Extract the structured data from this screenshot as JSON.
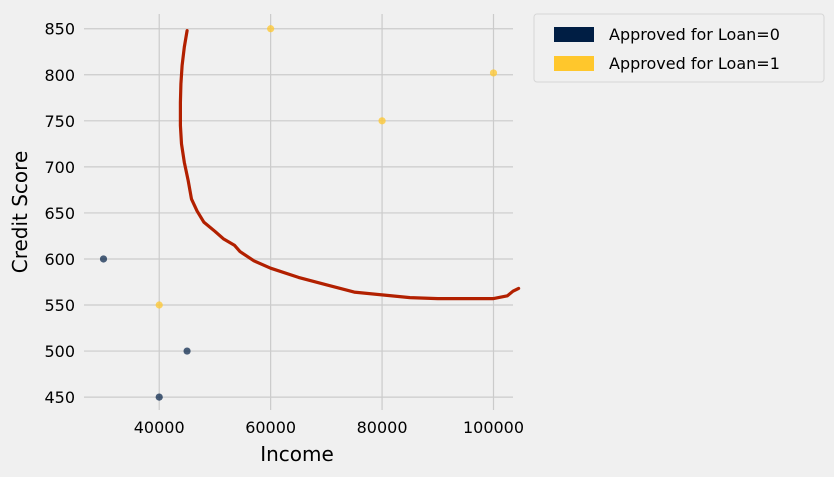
{
  "chart_data": {
    "type": "scatter",
    "xlabel": "Income",
    "ylabel": "Credit Score",
    "xlim": [
      26500,
      103500
    ],
    "ylim": [
      436,
      866
    ],
    "xticks": [
      40000,
      60000,
      80000,
      100000
    ],
    "xtick_labels": [
      "40000",
      "60000",
      "80000",
      "100000"
    ],
    "yticks": [
      450,
      500,
      550,
      600,
      650,
      700,
      750,
      800,
      850
    ],
    "ytick_labels": [
      "450",
      "500",
      "550",
      "600",
      "650",
      "700",
      "750",
      "800",
      "850"
    ],
    "grid": true,
    "legend_position": "outside-top-right",
    "series": [
      {
        "name": "Approved for Loan=0",
        "color": "#001e44",
        "points": [
          [
            30000,
            600
          ],
          [
            45000,
            500
          ],
          [
            40000,
            450
          ]
        ]
      },
      {
        "name": "Approved for Loan=1",
        "color": "#ffc72c",
        "points": [
          [
            60000,
            850
          ],
          [
            100000,
            802
          ],
          [
            80000,
            750
          ],
          [
            40000,
            550
          ]
        ]
      }
    ],
    "decision_boundary": {
      "color": "#b22000",
      "points": [
        [
          45000,
          848
        ],
        [
          44500,
          830
        ],
        [
          44100,
          810
        ],
        [
          43900,
          790
        ],
        [
          43800,
          770
        ],
        [
          43800,
          745
        ],
        [
          44000,
          725
        ],
        [
          44500,
          705
        ],
        [
          45200,
          685
        ],
        [
          45800,
          665
        ],
        [
          46800,
          652
        ],
        [
          48000,
          640
        ],
        [
          50000,
          630
        ],
        [
          51500,
          622
        ],
        [
          53500,
          615
        ],
        [
          54500,
          608
        ],
        [
          57000,
          598
        ],
        [
          60000,
          590
        ],
        [
          65000,
          580
        ],
        [
          70000,
          572
        ],
        [
          75000,
          564
        ],
        [
          80000,
          561
        ],
        [
          85000,
          558
        ],
        [
          90000,
          557
        ],
        [
          95000,
          557
        ],
        [
          100000,
          557
        ],
        [
          102500,
          560
        ],
        [
          103500,
          565
        ],
        [
          104500,
          568
        ]
      ]
    }
  }
}
